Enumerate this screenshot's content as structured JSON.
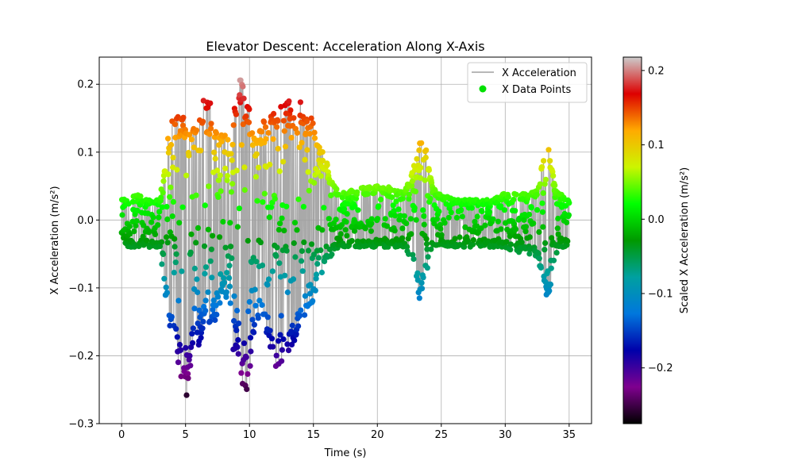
{
  "chart_data": {
    "type": "scatter",
    "title": "Elevator Descent: Acceleration Along X-Axis",
    "xlabel": "Time (s)",
    "ylabel": "X Acceleration (m/s²)",
    "xlim": [
      -1.75,
      36.75
    ],
    "ylim": [
      -0.3,
      0.24
    ],
    "xticks": [
      0,
      5,
      10,
      15,
      20,
      25,
      30,
      35
    ],
    "yticks": [
      -0.3,
      -0.2,
      -0.1,
      0.0,
      0.1,
      0.2
    ],
    "xtick_labels": [
      "0",
      "5",
      "10",
      "15",
      "20",
      "25",
      "30",
      "35"
    ],
    "ytick_labels": [
      "−0.3",
      "−0.2",
      "−0.1",
      "0.0",
      "0.1",
      "0.2"
    ],
    "grid": true,
    "legend_position": "top-right",
    "series": [
      {
        "name": "X Acceleration",
        "kind": "line",
        "color": "#a0a0a0"
      },
      {
        "name": "X Data Points",
        "kind": "scatter",
        "color": "#00e000",
        "colormap": "nipy_spectral"
      }
    ],
    "colorbar": {
      "label": "Scaled X Acceleration (m/s²)",
      "range": [
        -0.275,
        0.218
      ],
      "ticks": [
        -0.2,
        -0.1,
        0.0,
        0.1,
        0.2
      ],
      "tick_labels": [
        "−0.2",
        "−0.1",
        "0.0",
        "0.1",
        "0.2"
      ]
    },
    "envelope": {
      "x": [
        0.0,
        1.0,
        2.0,
        3.0,
        3.5,
        4.0,
        4.5,
        5.0,
        5.5,
        6.0,
        6.5,
        7.0,
        7.5,
        8.0,
        8.5,
        9.0,
        9.5,
        10.0,
        10.5,
        11.0,
        11.5,
        12.0,
        12.5,
        13.0,
        13.5,
        14.0,
        14.5,
        15.0,
        15.5,
        16.0,
        16.5,
        17.0,
        18.0,
        19.0,
        20.0,
        21.0,
        22.0,
        22.8,
        23.3,
        23.8,
        24.3,
        25.0,
        26.0,
        27.0,
        28.0,
        29.0,
        30.0,
        31.0,
        32.0,
        32.6,
        33.0,
        33.4,
        33.8,
        34.2,
        35.0
      ],
      "high": [
        0.03,
        0.04,
        0.03,
        0.03,
        0.11,
        0.15,
        0.16,
        0.16,
        0.13,
        0.17,
        0.19,
        0.17,
        0.13,
        0.14,
        0.12,
        0.2,
        0.22,
        0.17,
        0.12,
        0.15,
        0.15,
        0.16,
        0.17,
        0.18,
        0.17,
        0.18,
        0.16,
        0.15,
        0.11,
        0.09,
        0.06,
        0.04,
        0.05,
        0.05,
        0.05,
        0.05,
        0.04,
        0.08,
        0.12,
        0.11,
        0.05,
        0.04,
        0.03,
        0.03,
        0.03,
        0.03,
        0.04,
        0.04,
        0.04,
        0.05,
        0.1,
        0.11,
        0.06,
        0.04,
        0.03
      ],
      "low": [
        -0.04,
        -0.04,
        -0.04,
        -0.04,
        -0.13,
        -0.2,
        -0.22,
        -0.27,
        -0.21,
        -0.2,
        -0.14,
        -0.16,
        -0.14,
        -0.1,
        -0.19,
        -0.2,
        -0.275,
        -0.23,
        -0.15,
        -0.15,
        -0.2,
        -0.22,
        -0.22,
        -0.2,
        -0.19,
        -0.16,
        -0.13,
        -0.12,
        -0.09,
        -0.06,
        -0.05,
        -0.04,
        -0.04,
        -0.04,
        -0.04,
        -0.04,
        -0.04,
        -0.06,
        -0.12,
        -0.08,
        -0.04,
        -0.04,
        -0.04,
        -0.04,
        -0.04,
        -0.04,
        -0.04,
        -0.05,
        -0.05,
        -0.06,
        -0.1,
        -0.12,
        -0.06,
        -0.04,
        -0.04
      ]
    }
  }
}
